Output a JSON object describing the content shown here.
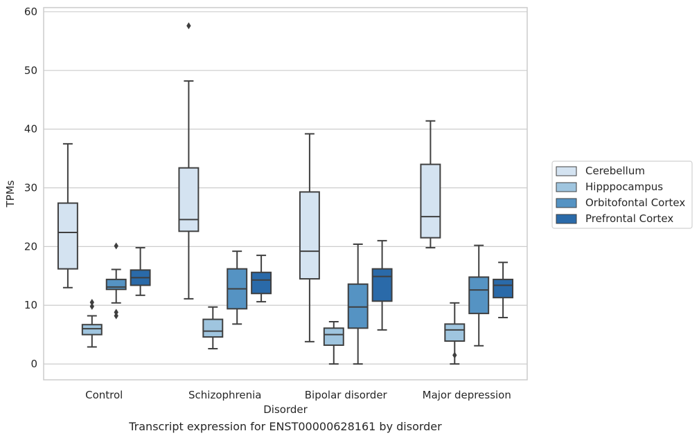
{
  "caption": "Transcript expression for ENST00000628161 by disorder",
  "chart_data": {
    "type": "boxplot",
    "title": "",
    "xlabel": "Disorder",
    "ylabel": "TPMs",
    "ylim": [
      -2.7,
      60.7
    ],
    "yticks": [
      0,
      10,
      20,
      30,
      40,
      50,
      60
    ],
    "grid": true,
    "legend_position": "right",
    "categories": [
      "Control",
      "Schizophrenia",
      "Bipolar disorder",
      "Major depression"
    ],
    "series": [
      {
        "name": "Cerebellum",
        "color": "#d4e3f1",
        "boxes": [
          {
            "whisker_low": 13.0,
            "q1": 16.2,
            "median": 22.4,
            "q3": 27.4,
            "whisker_high": 37.5,
            "outliers": []
          },
          {
            "whisker_low": 11.1,
            "q1": 22.6,
            "median": 24.6,
            "q3": 33.4,
            "whisker_high": 48.2,
            "outliers": [
              57.6
            ]
          },
          {
            "whisker_low": 3.8,
            "q1": 14.5,
            "median": 19.2,
            "q3": 29.3,
            "whisker_high": 39.2,
            "outliers": []
          },
          {
            "whisker_low": 19.8,
            "q1": 21.5,
            "median": 25.1,
            "q3": 34.0,
            "whisker_high": 41.4,
            "outliers": []
          }
        ]
      },
      {
        "name": "Hipppocampus",
        "color": "#9fc5df",
        "boxes": [
          {
            "whisker_low": 2.9,
            "q1": 5.0,
            "median": 6.0,
            "q3": 6.7,
            "whisker_high": 8.2,
            "outliers": [
              9.8,
              10.5
            ]
          },
          {
            "whisker_low": 2.6,
            "q1": 4.6,
            "median": 5.6,
            "q3": 7.6,
            "whisker_high": 9.7,
            "outliers": []
          },
          {
            "whisker_low": 0.0,
            "q1": 3.2,
            "median": 5.0,
            "q3": 6.1,
            "whisker_high": 7.2,
            "outliers": []
          },
          {
            "whisker_low": 0.0,
            "q1": 3.9,
            "median": 5.8,
            "q3": 6.8,
            "whisker_high": 10.4,
            "outliers": [
              1.5
            ]
          }
        ]
      },
      {
        "name": "Orbitofontal Cortex",
        "color": "#5593c3",
        "boxes": [
          {
            "whisker_low": 10.4,
            "q1": 12.7,
            "median": 13.1,
            "q3": 14.4,
            "whisker_high": 16.1,
            "outliers": [
              20.1,
              8.2,
              8.8
            ]
          },
          {
            "whisker_low": 6.8,
            "q1": 9.4,
            "median": 12.8,
            "q3": 16.2,
            "whisker_high": 19.2,
            "outliers": []
          },
          {
            "whisker_low": 0.0,
            "q1": 6.1,
            "median": 9.7,
            "q3": 13.6,
            "whisker_high": 20.4,
            "outliers": []
          },
          {
            "whisker_low": 3.1,
            "q1": 8.6,
            "median": 12.6,
            "q3": 14.8,
            "whisker_high": 20.2,
            "outliers": []
          }
        ]
      },
      {
        "name": "Prefrontal Cortex",
        "color": "#2a6aa9",
        "boxes": [
          {
            "whisker_low": 11.7,
            "q1": 13.4,
            "median": 14.7,
            "q3": 16.0,
            "whisker_high": 19.8,
            "outliers": []
          },
          {
            "whisker_low": 10.6,
            "q1": 12.0,
            "median": 14.3,
            "q3": 15.6,
            "whisker_high": 18.5,
            "outliers": []
          },
          {
            "whisker_low": 5.8,
            "q1": 10.7,
            "median": 14.9,
            "q3": 16.2,
            "whisker_high": 21.0,
            "outliers": []
          },
          {
            "whisker_low": 7.9,
            "q1": 11.3,
            "median": 13.4,
            "q3": 14.4,
            "whisker_high": 17.3,
            "outliers": []
          }
        ]
      }
    ]
  }
}
